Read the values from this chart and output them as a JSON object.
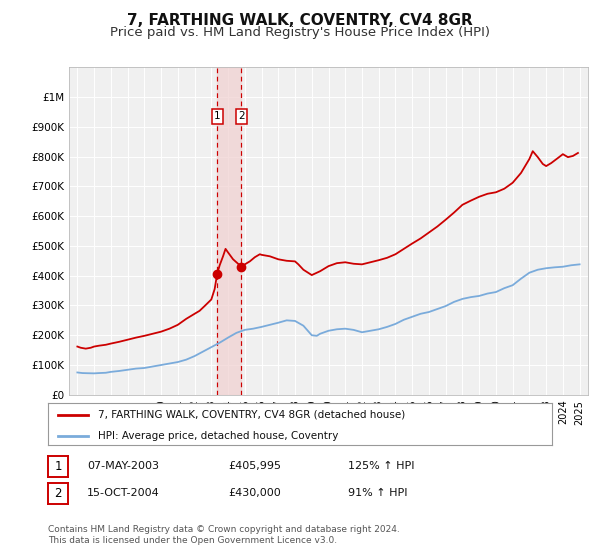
{
  "title": "7, FARTHING WALK, COVENTRY, CV4 8GR",
  "subtitle": "Price paid vs. HM Land Registry's House Price Index (HPI)",
  "title_fontsize": 11,
  "subtitle_fontsize": 9.5,
  "bg_color": "#ffffff",
  "plot_bg_color": "#f0f0f0",
  "grid_color": "#ffffff",
  "hpi_line_color": "#7aabdb",
  "price_line_color": "#cc0000",
  "sale1_date": 2003.35,
  "sale1_price": 405995,
  "sale2_date": 2004.79,
  "sale2_price": 430000,
  "legend_label_price": "7, FARTHING WALK, COVENTRY, CV4 8GR (detached house)",
  "legend_label_hpi": "HPI: Average price, detached house, Coventry",
  "table_row1": [
    "1",
    "07-MAY-2003",
    "£405,995",
    "125% ↑ HPI"
  ],
  "table_row2": [
    "2",
    "15-OCT-2004",
    "£430,000",
    "91% ↑ HPI"
  ],
  "footer": "Contains HM Land Registry data © Crown copyright and database right 2024.\nThis data is licensed under the Open Government Licence v3.0.",
  "ylim": [
    0,
    1100000
  ],
  "yticks": [
    0,
    100000,
    200000,
    300000,
    400000,
    500000,
    600000,
    700000,
    800000,
    900000,
    1000000
  ],
  "ytick_labels": [
    "£0",
    "£100K",
    "£200K",
    "£300K",
    "£400K",
    "£500K",
    "£600K",
    "£700K",
    "£800K",
    "£900K",
    "£1M"
  ],
  "xlim_left": 1994.5,
  "xlim_right": 2025.5,
  "xticks": [
    1995,
    1996,
    1997,
    1998,
    1999,
    2000,
    2001,
    2002,
    2003,
    2004,
    2005,
    2006,
    2007,
    2008,
    2009,
    2010,
    2011,
    2012,
    2013,
    2014,
    2015,
    2016,
    2017,
    2018,
    2019,
    2020,
    2021,
    2022,
    2023,
    2024,
    2025
  ],
  "shade_x1": 2003.35,
  "shade_x2": 2004.79,
  "hpi_data": [
    [
      1995.0,
      75000
    ],
    [
      1995.3,
      73000
    ],
    [
      1995.6,
      72500
    ],
    [
      1996.0,
      72000
    ],
    [
      1996.3,
      73000
    ],
    [
      1996.7,
      74000
    ],
    [
      1997.0,
      77000
    ],
    [
      1997.5,
      80000
    ],
    [
      1998.0,
      84000
    ],
    [
      1998.5,
      88000
    ],
    [
      1999.0,
      90000
    ],
    [
      1999.5,
      95000
    ],
    [
      2000.0,
      100000
    ],
    [
      2000.5,
      105000
    ],
    [
      2001.0,
      110000
    ],
    [
      2001.5,
      118000
    ],
    [
      2002.0,
      130000
    ],
    [
      2002.5,
      145000
    ],
    [
      2003.0,
      160000
    ],
    [
      2003.5,
      175000
    ],
    [
      2004.0,
      192000
    ],
    [
      2004.5,
      208000
    ],
    [
      2005.0,
      218000
    ],
    [
      2005.5,
      222000
    ],
    [
      2006.0,
      228000
    ],
    [
      2006.5,
      235000
    ],
    [
      2007.0,
      242000
    ],
    [
      2007.5,
      250000
    ],
    [
      2008.0,
      248000
    ],
    [
      2008.5,
      232000
    ],
    [
      2009.0,
      200000
    ],
    [
      2009.3,
      198000
    ],
    [
      2009.5,
      205000
    ],
    [
      2010.0,
      215000
    ],
    [
      2010.5,
      220000
    ],
    [
      2011.0,
      222000
    ],
    [
      2011.5,
      218000
    ],
    [
      2012.0,
      210000
    ],
    [
      2012.5,
      215000
    ],
    [
      2013.0,
      220000
    ],
    [
      2013.5,
      228000
    ],
    [
      2014.0,
      238000
    ],
    [
      2014.5,
      252000
    ],
    [
      2015.0,
      262000
    ],
    [
      2015.5,
      272000
    ],
    [
      2016.0,
      278000
    ],
    [
      2016.5,
      288000
    ],
    [
      2017.0,
      298000
    ],
    [
      2017.5,
      312000
    ],
    [
      2018.0,
      322000
    ],
    [
      2018.5,
      328000
    ],
    [
      2019.0,
      332000
    ],
    [
      2019.5,
      340000
    ],
    [
      2020.0,
      345000
    ],
    [
      2020.5,
      358000
    ],
    [
      2021.0,
      368000
    ],
    [
      2021.5,
      390000
    ],
    [
      2022.0,
      410000
    ],
    [
      2022.5,
      420000
    ],
    [
      2023.0,
      425000
    ],
    [
      2023.5,
      428000
    ],
    [
      2024.0,
      430000
    ],
    [
      2024.5,
      435000
    ],
    [
      2025.0,
      438000
    ]
  ],
  "price_data": [
    [
      1995.0,
      162000
    ],
    [
      1995.2,
      158000
    ],
    [
      1995.5,
      155000
    ],
    [
      1995.8,
      158000
    ],
    [
      1996.0,
      162000
    ],
    [
      1996.3,
      165000
    ],
    [
      1996.7,
      168000
    ],
    [
      1997.0,
      172000
    ],
    [
      1997.5,
      178000
    ],
    [
      1998.0,
      185000
    ],
    [
      1998.5,
      192000
    ],
    [
      1999.0,
      198000
    ],
    [
      1999.5,
      205000
    ],
    [
      2000.0,
      212000
    ],
    [
      2000.5,
      222000
    ],
    [
      2001.0,
      235000
    ],
    [
      2001.5,
      255000
    ],
    [
      2002.0,
      272000
    ],
    [
      2002.3,
      282000
    ],
    [
      2002.6,
      298000
    ],
    [
      2003.0,
      320000
    ],
    [
      2003.2,
      355000
    ],
    [
      2003.35,
      405995
    ],
    [
      2003.5,
      435000
    ],
    [
      2003.7,
      465000
    ],
    [
      2003.85,
      490000
    ],
    [
      2004.0,
      478000
    ],
    [
      2004.3,
      455000
    ],
    [
      2004.6,
      440000
    ],
    [
      2004.79,
      430000
    ],
    [
      2005.0,
      438000
    ],
    [
      2005.3,
      448000
    ],
    [
      2005.6,
      462000
    ],
    [
      2005.9,
      472000
    ],
    [
      2006.0,
      470000
    ],
    [
      2006.5,
      465000
    ],
    [
      2007.0,
      455000
    ],
    [
      2007.5,
      450000
    ],
    [
      2008.0,
      448000
    ],
    [
      2008.2,
      438000
    ],
    [
      2008.5,
      420000
    ],
    [
      2009.0,
      402000
    ],
    [
      2009.5,
      415000
    ],
    [
      2010.0,
      432000
    ],
    [
      2010.5,
      442000
    ],
    [
      2011.0,
      445000
    ],
    [
      2011.5,
      440000
    ],
    [
      2012.0,
      438000
    ],
    [
      2012.5,
      445000
    ],
    [
      2013.0,
      452000
    ],
    [
      2013.5,
      460000
    ],
    [
      2014.0,
      472000
    ],
    [
      2014.5,
      490000
    ],
    [
      2015.0,
      508000
    ],
    [
      2015.5,
      525000
    ],
    [
      2016.0,
      545000
    ],
    [
      2016.5,
      565000
    ],
    [
      2017.0,
      588000
    ],
    [
      2017.5,
      612000
    ],
    [
      2018.0,
      638000
    ],
    [
      2018.5,
      652000
    ],
    [
      2019.0,
      665000
    ],
    [
      2019.5,
      675000
    ],
    [
      2020.0,
      680000
    ],
    [
      2020.5,
      692000
    ],
    [
      2021.0,
      712000
    ],
    [
      2021.5,
      745000
    ],
    [
      2022.0,
      792000
    ],
    [
      2022.2,
      818000
    ],
    [
      2022.5,
      798000
    ],
    [
      2022.8,
      775000
    ],
    [
      2023.0,
      768000
    ],
    [
      2023.3,
      778000
    ],
    [
      2023.7,
      795000
    ],
    [
      2024.0,
      808000
    ],
    [
      2024.3,
      798000
    ],
    [
      2024.6,
      802000
    ],
    [
      2024.9,
      812000
    ]
  ]
}
